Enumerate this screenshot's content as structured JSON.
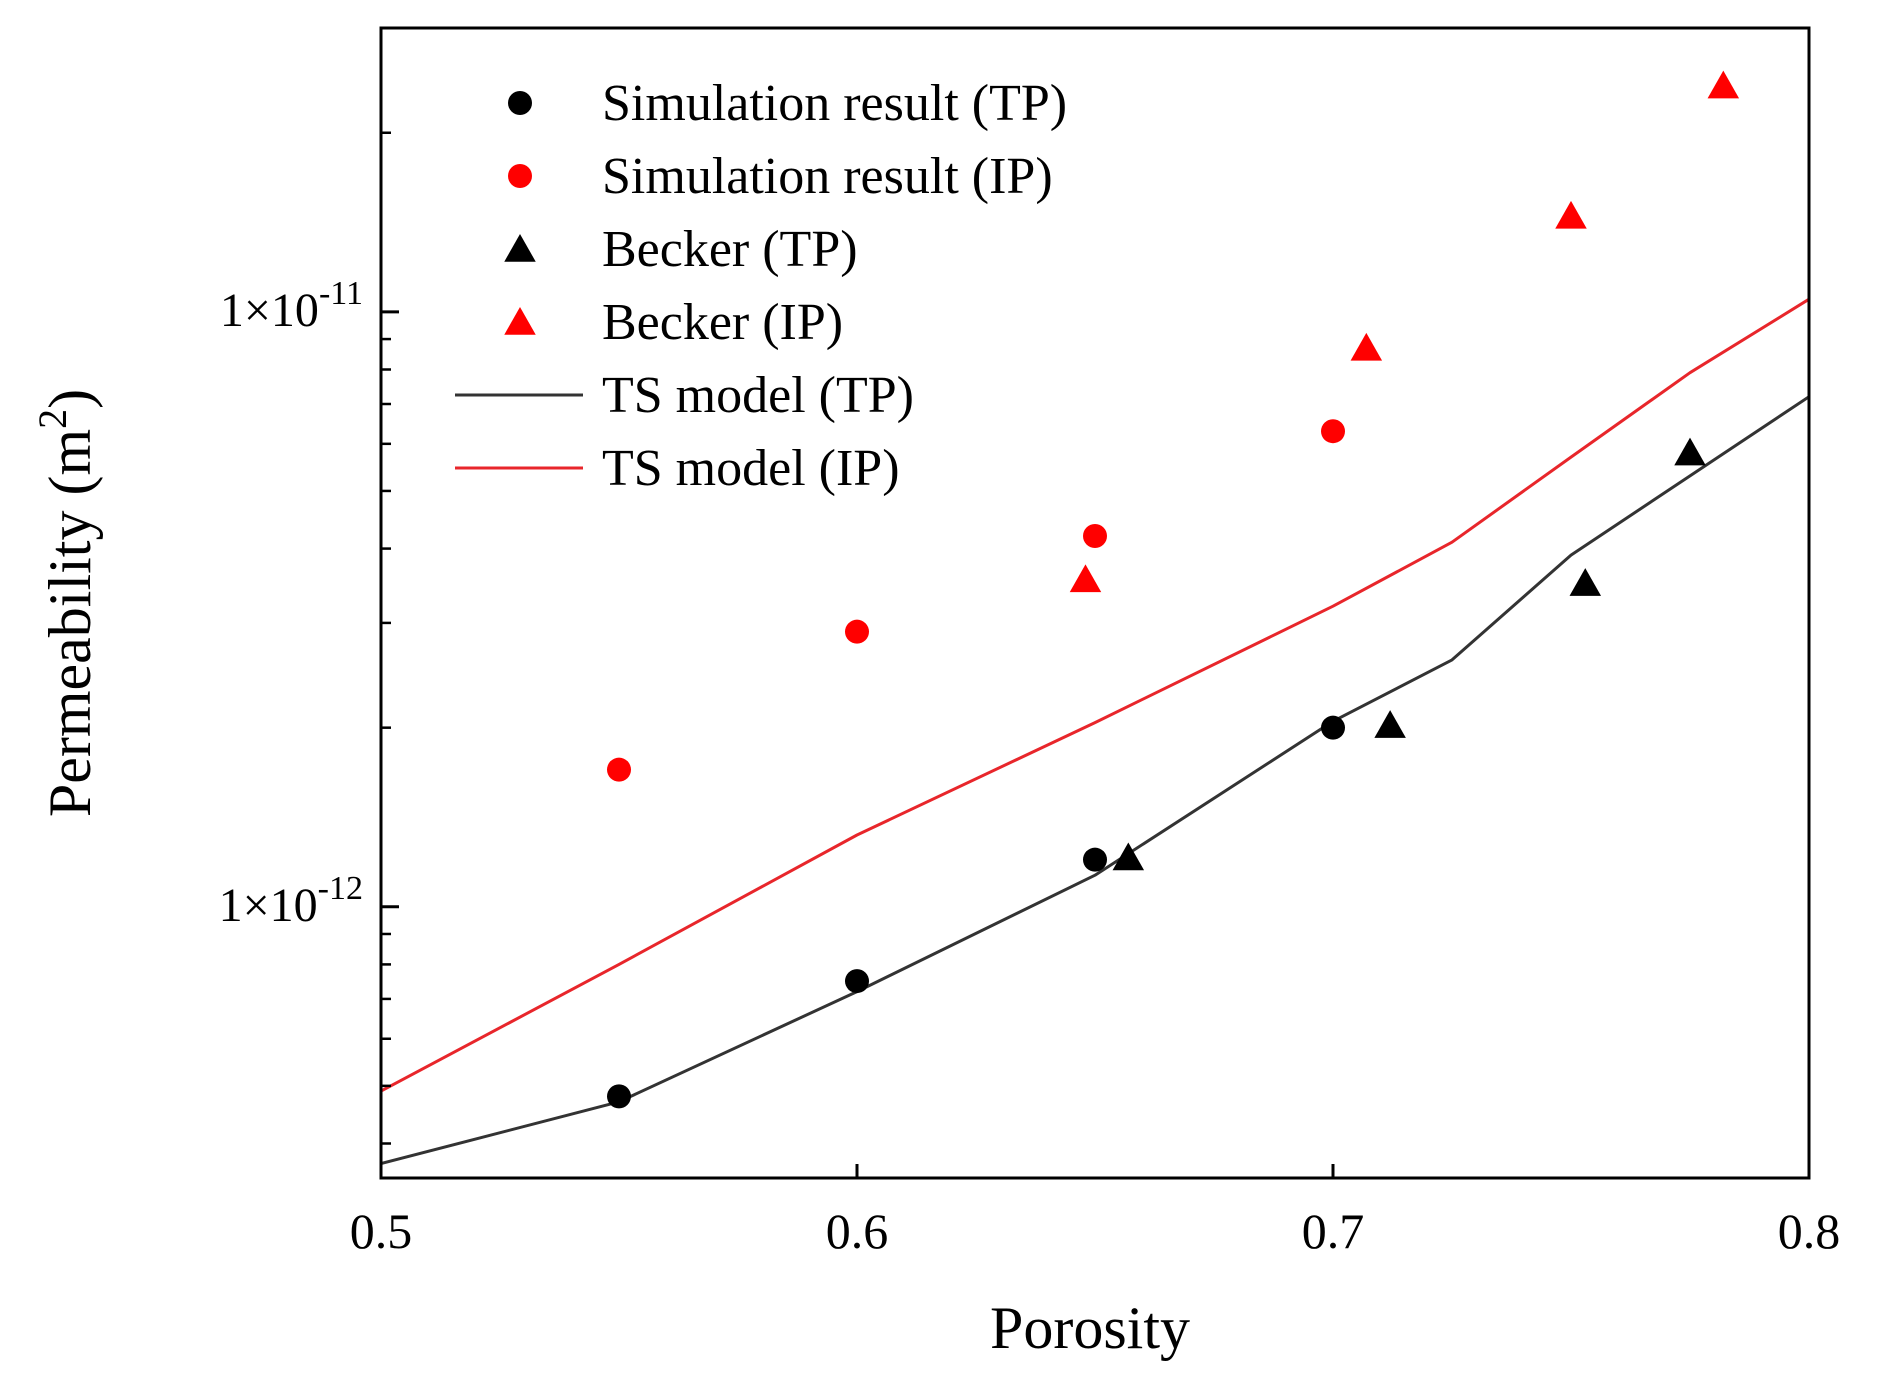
{
  "chart_data": {
    "type": "scatter",
    "xlabel": "Porosity",
    "ylabel": "Permeability (m²)",
    "ylabel_parts": {
      "main": "Permeability (m",
      "sup": "2",
      "close": ")"
    },
    "xscale": "linear",
    "yscale": "log",
    "xlim": [
      0.5,
      0.8
    ],
    "ylim": [
      3.5e-13,
      3e-11
    ],
    "xticks": [
      {
        "value": 0.5,
        "label": "0.5"
      },
      {
        "value": 0.6,
        "label": "0.6"
      },
      {
        "value": 0.7,
        "label": "0.7"
      },
      {
        "value": 0.8,
        "label": "0.8"
      }
    ],
    "yticks": [
      {
        "value": 1e-12,
        "mantissa": "1×10",
        "exponent": "-12"
      },
      {
        "value": 1e-11,
        "mantissa": "1×10",
        "exponent": "-11"
      }
    ],
    "legend_position": "top-left",
    "series": [
      {
        "name": "Simulation result (TP)",
        "kind": "scatter",
        "marker": "circle",
        "color": "#000000",
        "points": [
          [
            0.55,
            4.8e-13
          ],
          [
            0.6,
            7.5e-13
          ],
          [
            0.65,
            1.2e-12
          ],
          [
            0.7,
            2e-12
          ]
        ]
      },
      {
        "name": "Simulation result (IP)",
        "kind": "scatter",
        "marker": "circle",
        "color": "#ff0000",
        "points": [
          [
            0.55,
            1.7e-12
          ],
          [
            0.6,
            2.9e-12
          ],
          [
            0.65,
            4.2e-12
          ],
          [
            0.7,
            6.3e-12
          ]
        ]
      },
      {
        "name": "Becker (TP)",
        "kind": "scatter",
        "marker": "triangle",
        "color": "#000000",
        "points": [
          [
            0.657,
            1.21e-12
          ],
          [
            0.712,
            2.02e-12
          ],
          [
            0.753,
            3.5e-12
          ],
          [
            0.775,
            5.8e-12
          ]
        ]
      },
      {
        "name": "Becker (IP)",
        "kind": "scatter",
        "marker": "triangle",
        "color": "#ff0000",
        "points": [
          [
            0.648,
            3.55e-12
          ],
          [
            0.707,
            8.7e-12
          ],
          [
            0.75,
            1.45e-11
          ],
          [
            0.782,
            2.4e-11
          ]
        ]
      },
      {
        "name": "TS model (TP)",
        "kind": "line",
        "color": "#333333",
        "points": [
          [
            0.5,
            3.7e-13
          ],
          [
            0.55,
            4.7e-13
          ],
          [
            0.6,
            7.2e-13
          ],
          [
            0.65,
            1.13e-12
          ],
          [
            0.7,
            2.05e-12
          ],
          [
            0.725,
            2.6e-12
          ],
          [
            0.75,
            3.9e-12
          ],
          [
            0.775,
            5.3e-12
          ],
          [
            0.8,
            7.2e-12
          ]
        ]
      },
      {
        "name": "TS model (IP)",
        "kind": "line",
        "color": "#e8262b",
        "points": [
          [
            0.5,
            4.9e-13
          ],
          [
            0.55,
            8e-13
          ],
          [
            0.6,
            1.32e-12
          ],
          [
            0.65,
            2.04e-12
          ],
          [
            0.7,
            3.2e-12
          ],
          [
            0.725,
            4.1e-12
          ],
          [
            0.75,
            5.7e-12
          ],
          [
            0.775,
            7.9e-12
          ],
          [
            0.8,
            1.05e-11
          ]
        ]
      }
    ]
  }
}
